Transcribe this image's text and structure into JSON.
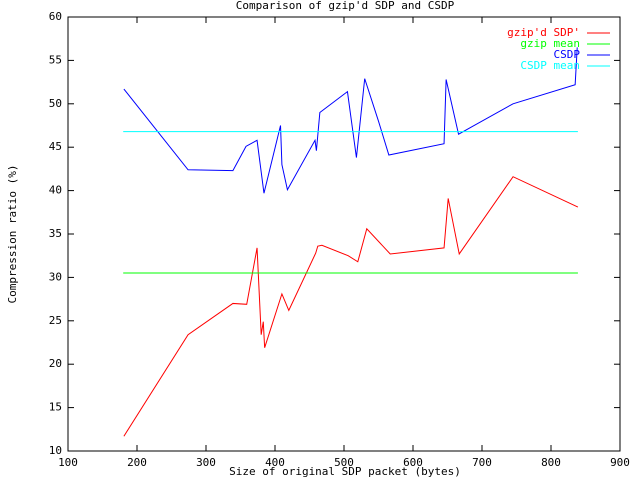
{
  "chart_data": {
    "type": "line",
    "title": "Comparison of gzip'd SDP and CSDP",
    "xlabel": "Size of original SDP packet (bytes)",
    "ylabel": "Compression ratio (%)",
    "xlim": [
      100,
      900
    ],
    "xticks": [
      100,
      200,
      300,
      400,
      500,
      600,
      700,
      800,
      900
    ],
    "ylim": [
      10,
      60
    ],
    "yticks": [
      10,
      15,
      20,
      25,
      30,
      35,
      40,
      45,
      50,
      55,
      60
    ],
    "legend": "upper right",
    "series": [
      {
        "name": "gzip'd SDP'",
        "color": "#ff0000",
        "x": [
          181,
          274,
          339,
          359,
          374,
          380,
          383,
          385,
          410,
          420,
          459,
          462,
          468,
          506,
          520,
          533,
          567,
          645,
          651,
          667,
          745,
          839
        ],
        "values": [
          11.7,
          23.4,
          27.0,
          26.9,
          33.4,
          23.4,
          24.9,
          21.9,
          28.1,
          26.2,
          32.8,
          33.6,
          33.7,
          32.5,
          31.8,
          35.6,
          32.7,
          33.4,
          39.1,
          32.7,
          41.6,
          38.1
        ]
      },
      {
        "name": "gzip mean",
        "color": "#00ff00",
        "x": [
          180,
          839
        ],
        "values": [
          30.5,
          30.5
        ]
      },
      {
        "name": "CSDP",
        "color": "#0000ff",
        "x": [
          181,
          274,
          339,
          358,
          374,
          384,
          408,
          410,
          418,
          458,
          460,
          465,
          505,
          518,
          530,
          550,
          565,
          645,
          648,
          666,
          745,
          835,
          838
        ],
        "values": [
          51.7,
          42.4,
          42.3,
          45.1,
          45.8,
          39.7,
          47.5,
          43.0,
          40.1,
          45.8,
          44.6,
          49.0,
          51.4,
          43.8,
          52.9,
          48.0,
          44.1,
          45.4,
          52.8,
          46.5,
          50.0,
          52.2,
          56.5
        ]
      },
      {
        "name": "CSDP mean",
        "color": "#00ffff",
        "x": [
          180,
          839
        ],
        "values": [
          46.8,
          46.8
        ]
      }
    ]
  }
}
